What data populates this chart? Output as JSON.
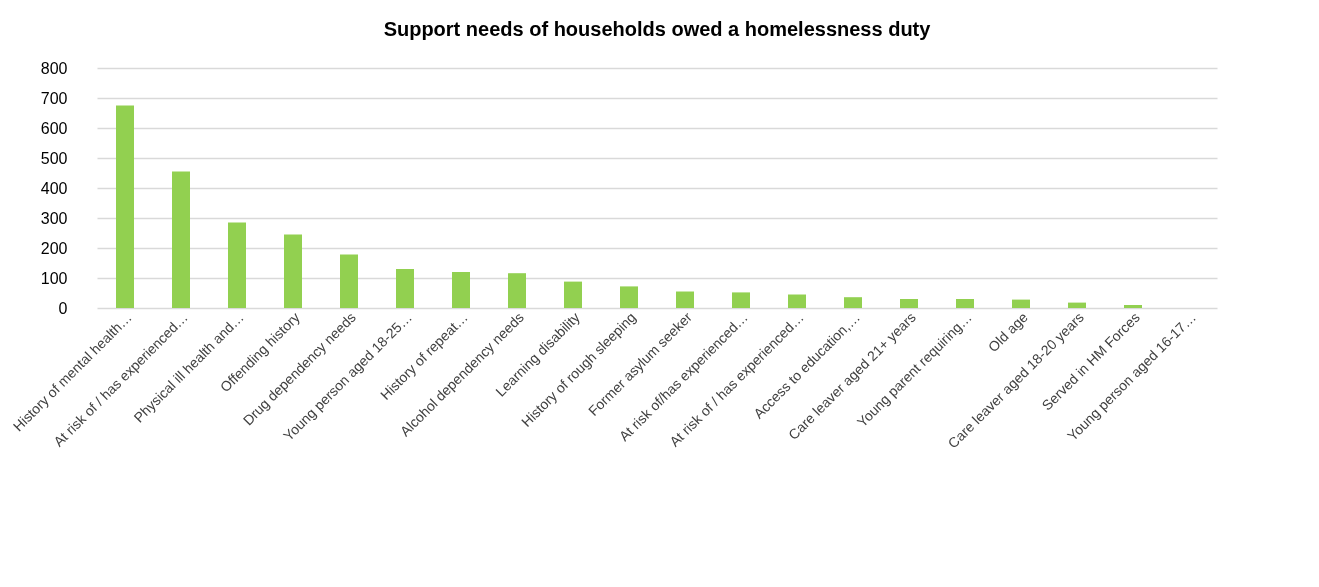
{
  "chart_data": {
    "type": "bar",
    "title": "Support needs of households owed a homelessness duty",
    "categories": [
      "History of mental health…",
      "At risk of / has experienced…",
      "Physical ill health and…",
      "Offending history",
      "Drug dependency needs",
      "Young person aged 18-25…",
      "History of repeat…",
      "Alcohol dependency needs",
      "Learning disability",
      "History of rough sleeping",
      "Former asylum seeker",
      "At risk of/has experienced…",
      "At risk of / has experienced…",
      "Access to education,…",
      "Care leaver aged 21+ years",
      "Young parent requiring…",
      "Old age",
      "Care leaver aged 18-20 years",
      "Served in HM Forces",
      "Young person aged 16-17…"
    ],
    "values": [
      675,
      455,
      285,
      245,
      178,
      130,
      120,
      116,
      88,
      72,
      55,
      52,
      45,
      36,
      30,
      30,
      28,
      18,
      10,
      0
    ],
    "color": "#92d050",
    "ylim": [
      0,
      800
    ],
    "yticks": [
      0,
      100,
      200,
      300,
      400,
      500,
      600,
      700,
      800
    ],
    "grid": "y"
  }
}
